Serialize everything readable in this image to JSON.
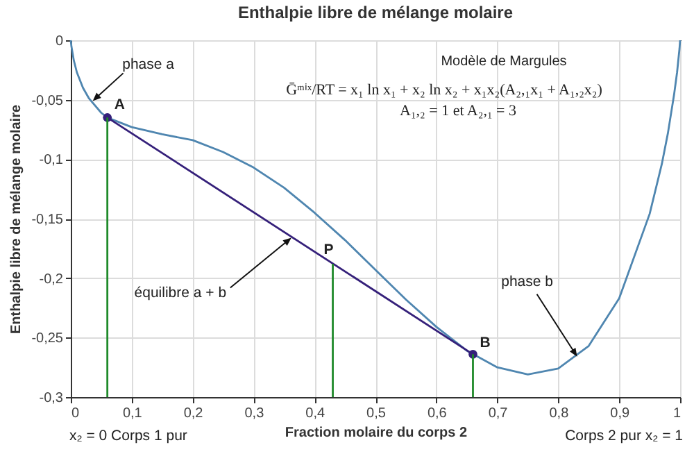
{
  "chart_data": {
    "type": "line",
    "title": "Enthalpie libre de mélange molaire",
    "xlabel": "Fraction molaire du corps 2",
    "ylabel": "Enthalpie libre de mélange molaire",
    "xlim": [
      0,
      1
    ],
    "ylim": [
      -0.3,
      0
    ],
    "xticks": [
      0,
      {
        "value": 0.1,
        "label": "0,1"
      },
      {
        "value": 0.2,
        "label": "0,2"
      },
      {
        "value": 0.3,
        "label": "0,3"
      },
      {
        "value": 0.4,
        "label": "0,4"
      },
      {
        "value": 0.5,
        "label": "0,5"
      },
      {
        "value": 0.6,
        "label": "0,6"
      },
      {
        "value": 0.7,
        "label": "0,7"
      },
      {
        "value": 0.8,
        "label": "0,8"
      },
      {
        "value": 0.9,
        "label": "0,9"
      },
      1
    ],
    "yticks": [
      {
        "value": -0.3,
        "label": "-0,3"
      },
      {
        "value": -0.25,
        "label": "-0,25"
      },
      {
        "value": -0.2,
        "label": "-0,2"
      },
      {
        "value": -0.15,
        "label": "-0,15"
      },
      {
        "value": -0.1,
        "label": "-0,1"
      },
      {
        "value": -0.05,
        "label": "-0,05"
      },
      0
    ],
    "grid": true,
    "series": [
      {
        "color": "#4f86b0",
        "x": [
          0,
          0.001,
          0.005,
          0.01,
          0.02,
          0.03,
          0.05,
          0.06,
          0.1,
          0.15,
          0.2,
          0.25,
          0.3,
          0.35,
          0.4,
          0.45,
          0.5,
          0.55,
          0.6,
          0.65,
          0.7,
          0.75,
          0.8,
          0.85,
          0.9,
          0.95,
          0.97,
          0.98,
          0.99,
          0.995,
          0.999,
          1
        ],
        "values": [
          0,
          -0.005,
          -0.017,
          -0.027,
          -0.04,
          -0.049,
          -0.061,
          -0.065,
          -0.073,
          -0.079,
          -0.084,
          -0.094,
          -0.107,
          -0.124,
          -0.145,
          -0.168,
          -0.193,
          -0.218,
          -0.241,
          -0.261,
          -0.275,
          -0.281,
          -0.276,
          -0.257,
          -0.217,
          -0.146,
          -0.104,
          -0.078,
          -0.046,
          -0.027,
          -0.007,
          0
        ]
      },
      {
        "color": "#35207a",
        "marker": "circle",
        "x": [
          0.06,
          0.66
        ],
        "values": [
          -0.065,
          -0.264
        ]
      },
      {
        "color": "#1f8a2a",
        "x": [
          0.06,
          0.06
        ],
        "values": [
          -0.3,
          -0.065
        ]
      },
      {
        "color": "#1f8a2a",
        "x": [
          0.43,
          0.43
        ],
        "values": [
          -0.3,
          -0.188
        ]
      },
      {
        "color": "#1f8a2a",
        "x": [
          0.66,
          0.66
        ],
        "values": [
          -0.3,
          -0.264
        ]
      }
    ],
    "annotations": [
      {
        "text": "phase a",
        "x": 0.036,
        "y": -0.051
      },
      {
        "text": "A",
        "x": 0.06,
        "y": -0.065
      },
      {
        "text": "P",
        "x": 0.43,
        "y": -0.188
      },
      {
        "text": "B",
        "x": 0.66,
        "y": -0.264
      },
      {
        "text": "équilibre a + b",
        "x": 0.362,
        "y": -0.166
      },
      {
        "text": "phase b",
        "x": 0.831,
        "y": -0.266
      },
      "Modèle de Margules",
      "Ḡᵐⁱˣ/RT = x₁ ln x₁ + x₂ ln x₂ + x₁x₂(A₂,₁x₁ + A₁,₂x₂)",
      "A₁,₂ = 1 et A₂,₁ = 3",
      "x₂ = 0  Corps 1 pur",
      "Corps 2 pur  x₂ = 1"
    ]
  }
}
